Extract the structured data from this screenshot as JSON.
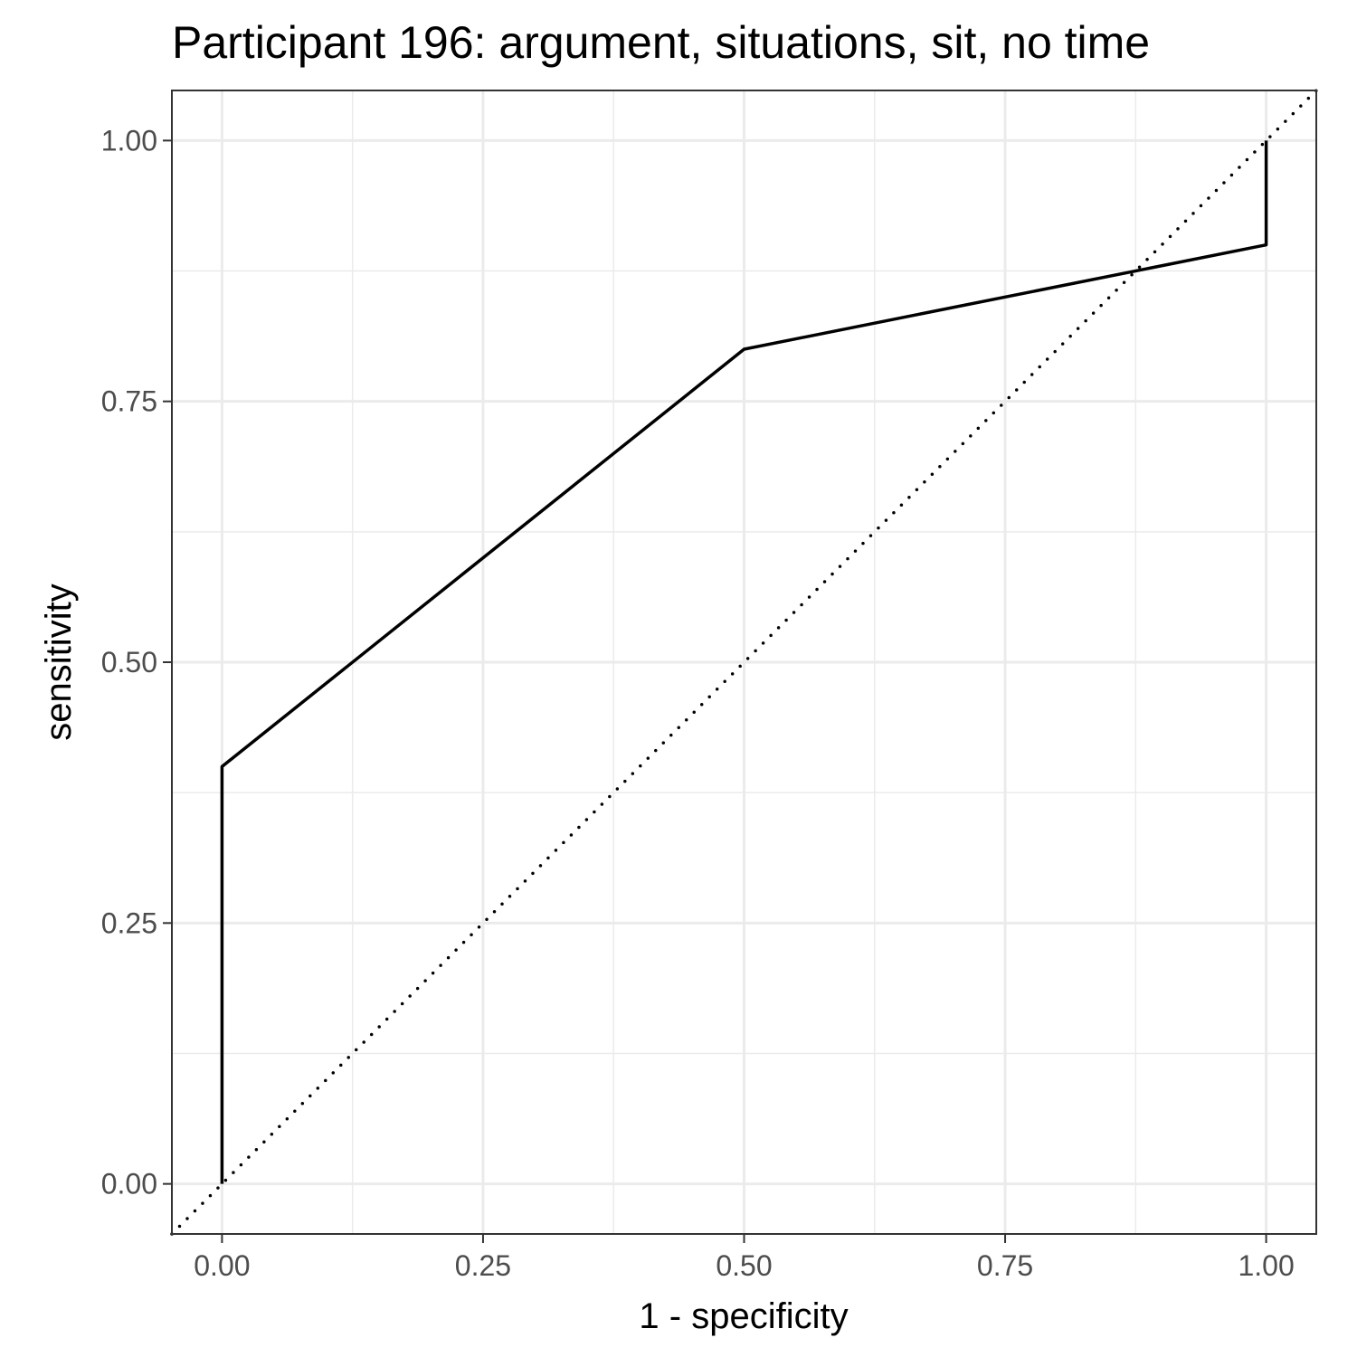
{
  "chart_data": {
    "type": "line",
    "title": "Participant 196: argument, situations, sit, no time",
    "xlabel": "1 - specificity",
    "ylabel": "sensitivity",
    "xlim": [
      -0.048,
      1.048
    ],
    "ylim": [
      -0.048,
      1.048
    ],
    "x_ticks": [
      "0.00",
      "0.25",
      "0.50",
      "0.75",
      "1.00"
    ],
    "y_ticks": [
      "0.00",
      "0.25",
      "0.50",
      "0.75",
      "1.00"
    ],
    "grid": true,
    "series": [
      {
        "x": [
          0.0,
          0.0,
          0.5,
          1.0,
          1.0
        ],
        "y": [
          0.0,
          0.4,
          0.8,
          0.9,
          1.0
        ],
        "color": "#000000",
        "style": "solid"
      }
    ],
    "reference_line": {
      "slope": 1,
      "intercept": 0,
      "style": "dotted",
      "color": "#000000"
    }
  }
}
